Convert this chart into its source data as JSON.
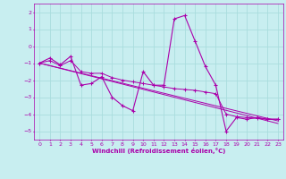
{
  "xlabel": "Windchill (Refroidissement éolien,°C)",
  "background_color": "#c8eef0",
  "grid_color": "#aadddd",
  "line_color": "#aa00aa",
  "xlim": [
    -0.5,
    23.5
  ],
  "ylim": [
    -5.5,
    2.5
  ],
  "yticks": [
    -5,
    -4,
    -3,
    -2,
    -1,
    0,
    1,
    2
  ],
  "xticks": [
    0,
    1,
    2,
    3,
    4,
    5,
    6,
    7,
    8,
    9,
    10,
    11,
    12,
    13,
    14,
    15,
    16,
    17,
    18,
    19,
    20,
    21,
    22,
    23
  ],
  "series_main": [
    [
      0,
      -1.0
    ],
    [
      1,
      -0.7
    ],
    [
      2,
      -1.1
    ],
    [
      3,
      -0.6
    ],
    [
      4,
      -2.3
    ],
    [
      5,
      -2.2
    ],
    [
      6,
      -1.8
    ],
    [
      7,
      -3.0
    ],
    [
      8,
      -3.5
    ],
    [
      9,
      -3.8
    ],
    [
      10,
      -1.5
    ],
    [
      11,
      -2.3
    ],
    [
      12,
      -2.3
    ],
    [
      13,
      1.6
    ],
    [
      14,
      1.8
    ],
    [
      15,
      0.3
    ],
    [
      16,
      -1.2
    ],
    [
      17,
      -2.3
    ],
    [
      18,
      -5.0
    ],
    [
      19,
      -4.2
    ],
    [
      20,
      -4.3
    ],
    [
      21,
      -4.2
    ],
    [
      22,
      -4.3
    ],
    [
      23,
      -4.3
    ]
  ],
  "series_trend1": [
    [
      0,
      -1.0
    ],
    [
      1,
      -0.85
    ],
    [
      2,
      -1.15
    ],
    [
      3,
      -0.85
    ],
    [
      4,
      -1.5
    ],
    [
      5,
      -1.6
    ],
    [
      6,
      -1.6
    ],
    [
      7,
      -1.85
    ],
    [
      8,
      -2.0
    ],
    [
      9,
      -2.1
    ],
    [
      10,
      -2.2
    ],
    [
      11,
      -2.3
    ],
    [
      12,
      -2.4
    ],
    [
      13,
      -2.5
    ],
    [
      14,
      -2.55
    ],
    [
      15,
      -2.6
    ],
    [
      16,
      -2.7
    ],
    [
      17,
      -2.8
    ],
    [
      18,
      -4.0
    ],
    [
      19,
      -4.15
    ],
    [
      20,
      -4.2
    ],
    [
      21,
      -4.25
    ],
    [
      22,
      -4.3
    ],
    [
      23,
      -4.3
    ]
  ],
  "series_trend2": [
    [
      0,
      -1.0
    ],
    [
      23,
      -4.4
    ]
  ],
  "series_trend3": [
    [
      0,
      -1.0
    ],
    [
      23,
      -4.55
    ]
  ]
}
